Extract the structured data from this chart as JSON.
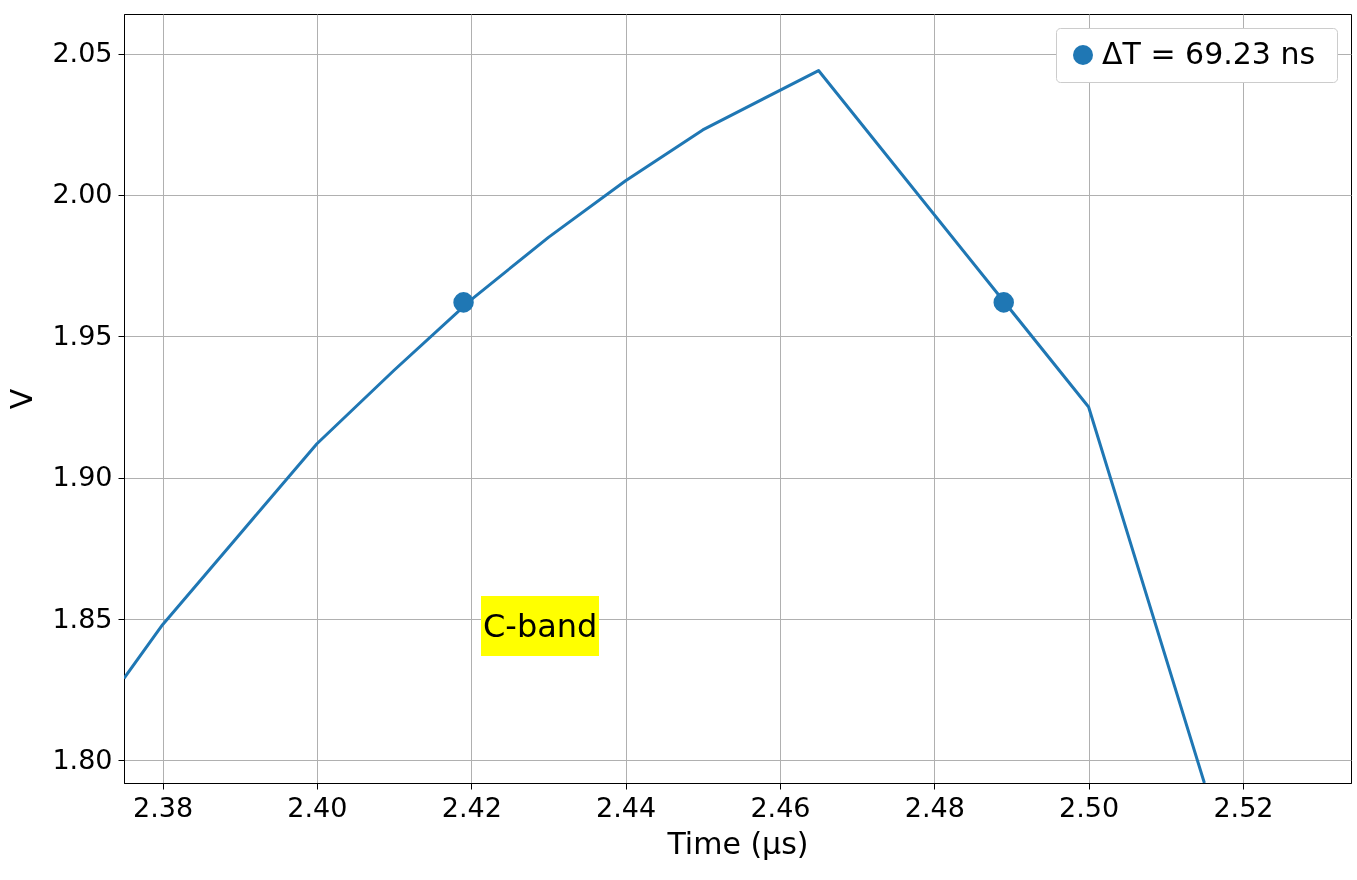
{
  "chart_data": {
    "type": "line",
    "xlabel": "Time (μs)",
    "ylabel": "V",
    "xlim": [
      2.375,
      2.534
    ],
    "ylim": [
      1.792,
      2.064
    ],
    "xticks": [
      2.38,
      {
        "value": 2.4,
        "label": "2.40"
      },
      2.42,
      2.44,
      2.46,
      2.48,
      {
        "value": 2.5,
        "label": "2.50"
      },
      2.52
    ],
    "yticks": [
      {
        "value": 1.8,
        "label": "1.80"
      },
      {
        "value": 1.85,
        "label": "1.85"
      },
      {
        "value": 1.9,
        "label": "1.90"
      },
      {
        "value": 1.95,
        "label": "1.95"
      },
      {
        "value": 2.0,
        "label": "2.00"
      },
      {
        "value": 2.05,
        "label": "2.05"
      }
    ],
    "grid": true,
    "legend": "top right",
    "line_style": "solid",
    "annotations": [
      "C-band"
    ],
    "series": [
      {
        "color": "#1f77b4",
        "x": [
          2.375,
          2.38,
          2.39,
          2.4,
          2.41,
          2.42,
          2.43,
          2.44,
          2.45,
          2.465,
          2.5,
          2.515
        ],
        "values": [
          1.829,
          1.848,
          1.88,
          1.912,
          1.938,
          1.963,
          1.985,
          2.005,
          2.023,
          2.044,
          1.925,
          1.792
        ]
      },
      {
        "type": "scatter",
        "name": "ΔT =  69.23 ns",
        "color": "#1f77b4",
        "x": [
          2.419,
          2.489
        ],
        "values": [
          1.962,
          1.962
        ]
      }
    ]
  }
}
